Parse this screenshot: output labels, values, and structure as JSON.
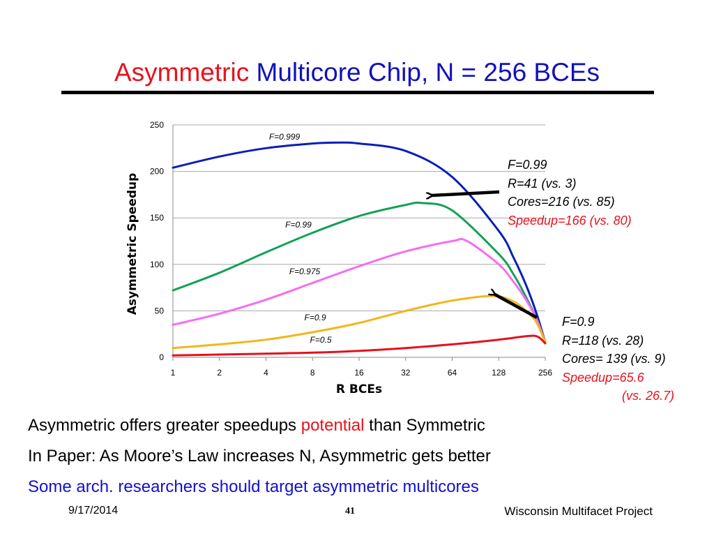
{
  "slide": {
    "title_red": "Asymmetric",
    "title_blue": "Multicore Chip, N = 256 BCEs",
    "bullets": [
      {
        "before": "Asymmetric offers greater speedups ",
        "highlight": "potential",
        "after": " than Symmetric"
      },
      {
        "text": "In Paper: As Moore’s Law increases N, Asymmetric gets better"
      },
      {
        "text": "Some arch. researchers should target asymmetric multicores"
      }
    ],
    "footer": {
      "date": "9/17/2014",
      "page": "41",
      "project": "Wisconsin Multifacet Project"
    }
  },
  "annotations": [
    {
      "lines": [
        "F=0.99",
        "R=41 (vs. 3)",
        "Cores=216 (vs. 85)"
      ],
      "red_lines": [
        "Speedup=166 (vs. 80)"
      ]
    },
    {
      "lines": [
        "F=0.9",
        "R=118 (vs. 28)",
        "Cores= 139 (vs. 9)"
      ],
      "red_lines": [
        "Speedup=65.6",
        "(vs. 26.7)"
      ]
    }
  ],
  "colors": {
    "title_red": "#e8121c",
    "title_blue": "#1111bb",
    "text_blue": "#1111cc"
  },
  "chart_data": {
    "type": "line",
    "xlabel": "R BCEs",
    "ylabel": "Asymmetric Speedup",
    "x_scale": "log2",
    "xticks": [
      "1",
      "2",
      "4",
      "8",
      "16",
      "32",
      "64",
      "128",
      "256"
    ],
    "yticks": [
      "0",
      "50",
      "100",
      "150",
      "200",
      "250"
    ],
    "ylim": [
      0,
      250
    ],
    "grid": "horizontal",
    "legend": "none",
    "series": [
      {
        "name": "F=0.999",
        "color": "#0a1fb5",
        "x": [
          1,
          2,
          4,
          8,
          12,
          16,
          32,
          64,
          128,
          160,
          192,
          224,
          256
        ],
        "y": [
          204,
          216,
          225,
          230,
          231,
          230,
          222,
          194,
          136,
          107,
          78,
          48,
          16
        ]
      },
      {
        "name": "F=0.99",
        "color": "#13a156",
        "x": [
          1,
          2,
          4,
          8,
          16,
          32,
          41,
          64,
          128,
          160,
          192,
          224,
          256
        ],
        "y": [
          72,
          91,
          113,
          134,
          152,
          164,
          166,
          158,
          111,
          89,
          65,
          42,
          16
        ]
      },
      {
        "name": "F=0.975",
        "color": "#f66cf2",
        "x": [
          1,
          2,
          4,
          8,
          16,
          32,
          64,
          80,
          128,
          160,
          192,
          224,
          256
        ],
        "y": [
          35,
          47,
          62,
          80,
          98,
          114,
          125,
          125,
          100,
          81,
          62,
          42,
          16
        ]
      },
      {
        "name": "F=0.9",
        "color": "#f2b61a",
        "x": [
          1,
          2,
          4,
          8,
          16,
          32,
          64,
          118,
          160,
          192,
          224,
          256
        ],
        "y": [
          10,
          14,
          19,
          27,
          37,
          50,
          61,
          66,
          60,
          50,
          38,
          16
        ]
      },
      {
        "name": "F=0.5",
        "color": "#e3121c",
        "x": [
          1,
          2,
          4,
          8,
          16,
          32,
          64,
          128,
          200,
          230,
          256
        ],
        "y": [
          2,
          3,
          4,
          5,
          7,
          10,
          14,
          19,
          23,
          22,
          15
        ]
      }
    ]
  }
}
